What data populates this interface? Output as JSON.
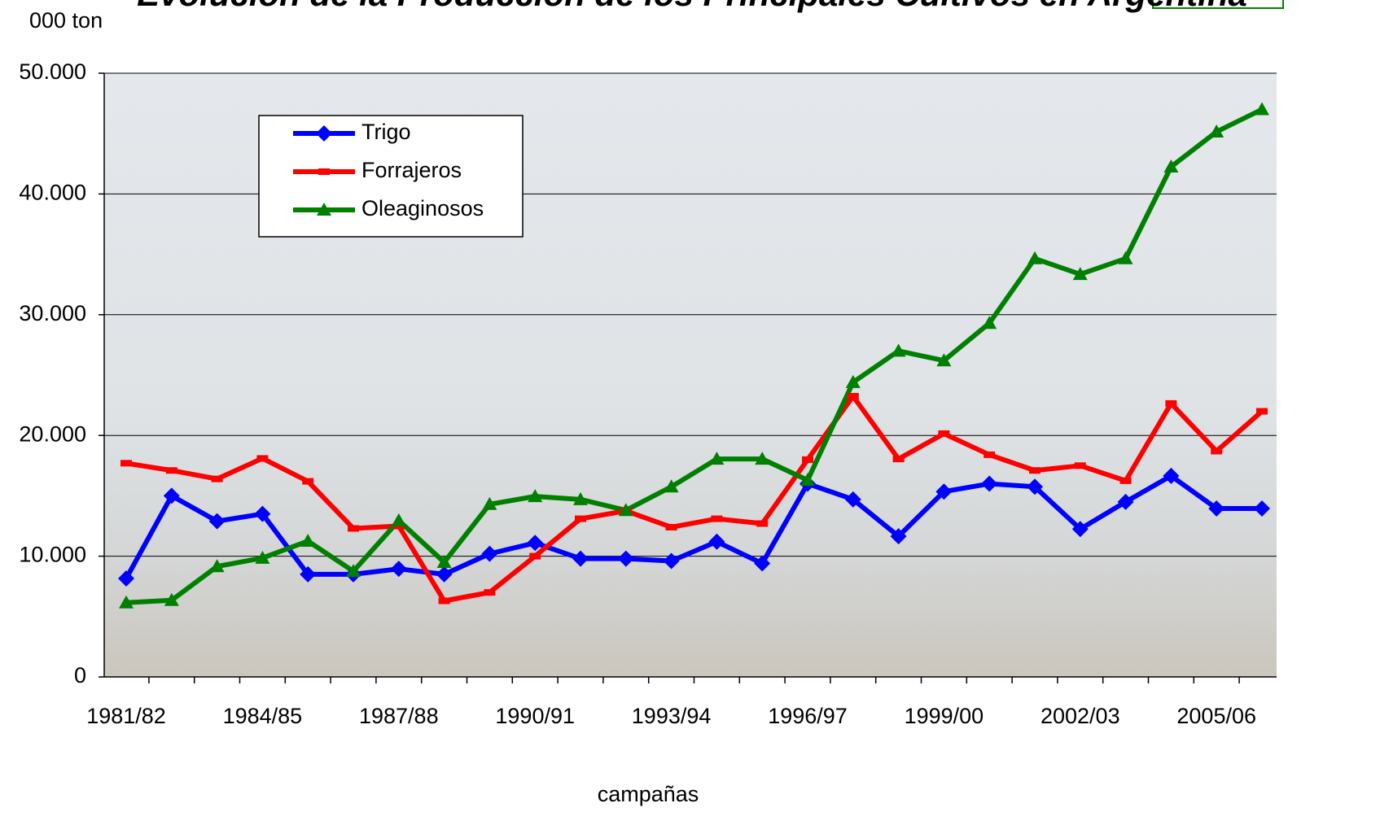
{
  "chart_data": {
    "type": "line",
    "title": "Evolución de la Producción de los Principales Cultivos en Argentina",
    "y_label": "000 ton",
    "x_label": "campañas",
    "categories": [
      "1981/82",
      null,
      null,
      "1984/85",
      null,
      null,
      "1987/88",
      null,
      null,
      "1990/91",
      null,
      null,
      "1993/94",
      null,
      null,
      "1996/97",
      null,
      null,
      "1999/00",
      null,
      null,
      "2002/03",
      null,
      null,
      "2005/06",
      null
    ],
    "series": [
      {
        "name": "Trigo",
        "color": "#0000ff",
        "marker": "diamond",
        "values": [
          8150,
          15000,
          12900,
          13500,
          8500,
          8500,
          8950,
          8500,
          10200,
          11100,
          9800,
          9800,
          9600,
          11200,
          9400,
          16000,
          14700,
          11650,
          15350,
          16000,
          15750,
          12250,
          14500,
          16650,
          13950,
          13950
        ]
      },
      {
        "name": "Forrajeros",
        "color": "#ff0000",
        "marker": "dash",
        "values": [
          17700,
          17100,
          16400,
          18100,
          16200,
          12300,
          12500,
          6300,
          7000,
          10000,
          13100,
          13750,
          12400,
          13100,
          12700,
          18000,
          23250,
          18050,
          20150,
          18400,
          17100,
          17500,
          16250,
          22650,
          18700,
          22000
        ]
      },
      {
        "name": "Oleaginosos",
        "color": "#008000",
        "marker": "triangle",
        "values": [
          6150,
          6350,
          9150,
          9850,
          11250,
          8750,
          12950,
          9500,
          14300,
          14950,
          14700,
          13800,
          15750,
          18050,
          18050,
          16300,
          24400,
          27000,
          26200,
          29300,
          34650,
          33350,
          34650,
          42250,
          45150,
          47000
        ]
      }
    ],
    "ylim": [
      0,
      50000
    ],
    "yticks": [
      0,
      {
        "value": 10000,
        "label": "10.000"
      },
      {
        "value": 20000,
        "label": "20.000"
      },
      {
        "value": 30000,
        "label": "30.000"
      },
      {
        "value": 40000,
        "label": "40.000"
      },
      {
        "value": 50000,
        "label": "50.000"
      }
    ],
    "grid": true
  }
}
